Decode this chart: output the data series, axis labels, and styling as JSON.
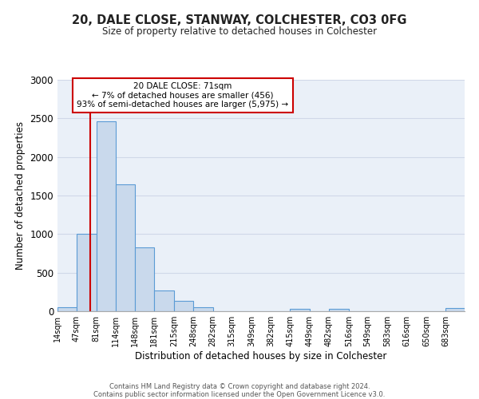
{
  "title": "20, DALE CLOSE, STANWAY, COLCHESTER, CO3 0FG",
  "subtitle": "Size of property relative to detached houses in Colchester",
  "xlabel": "Distribution of detached houses by size in Colchester",
  "ylabel": "Number of detached properties",
  "bar_labels": [
    "14sqm",
    "47sqm",
    "81sqm",
    "114sqm",
    "148sqm",
    "181sqm",
    "215sqm",
    "248sqm",
    "282sqm",
    "315sqm",
    "349sqm",
    "382sqm",
    "415sqm",
    "449sqm",
    "482sqm",
    "516sqm",
    "549sqm",
    "583sqm",
    "616sqm",
    "650sqm",
    "683sqm"
  ],
  "bar_values": [
    55,
    1000,
    2460,
    1650,
    830,
    265,
    130,
    55,
    0,
    0,
    0,
    0,
    35,
    0,
    30,
    0,
    0,
    0,
    0,
    0,
    40
  ],
  "bar_color": "#c9d9ec",
  "bar_edge_color": "#5b9bd5",
  "ylim": [
    0,
    3000
  ],
  "yticks": [
    0,
    500,
    1000,
    1500,
    2000,
    2500,
    3000
  ],
  "vline_x": 71,
  "vline_color": "#cc0000",
  "annotation_title": "20 DALE CLOSE: 71sqm",
  "annotation_line1": "← 7% of detached houses are smaller (456)",
  "annotation_line2": "93% of semi-detached houses are larger (5,975) →",
  "annotation_box_color": "#ffffff",
  "annotation_box_edge": "#cc0000",
  "footer_line1": "Contains HM Land Registry data © Crown copyright and database right 2024.",
  "footer_line2": "Contains public sector information licensed under the Open Government Licence v3.0.",
  "bin_edges": [
    14,
    47,
    81,
    114,
    148,
    181,
    215,
    248,
    282,
    315,
    349,
    382,
    415,
    449,
    482,
    516,
    549,
    583,
    616,
    650,
    683,
    716
  ],
  "grid_color": "#d0d8e8",
  "background_color": "#eaf0f8",
  "fig_width": 6.0,
  "fig_height": 5.0,
  "dpi": 100
}
